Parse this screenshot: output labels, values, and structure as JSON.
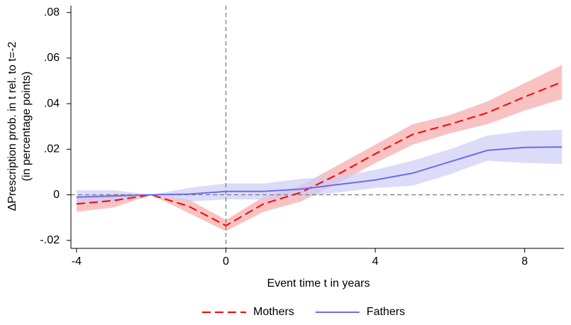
{
  "chart_data": {
    "type": "line",
    "x_label": "Event time t in years",
    "y_label": [
      "ΔPrescription prob. in t rel. to t=-2",
      "(in percentage points)"
    ],
    "x": [
      -4,
      -3,
      -2,
      -1,
      0,
      1,
      2,
      3,
      4,
      5,
      6,
      7,
      8,
      9
    ],
    "series": [
      {
        "name": "Mothers",
        "color": "#ff0000",
        "band_color": "#f7a8a8",
        "dash": true,
        "values": [
          -0.004,
          -0.0025,
          0,
          -0.005,
          -0.0135,
          -0.004,
          0.001,
          0.009,
          0.018,
          0.0265,
          0.031,
          0.036,
          0.043,
          0.0495
        ],
        "lower": [
          -0.0075,
          -0.0055,
          0,
          -0.008,
          -0.016,
          -0.0075,
          -0.003,
          0.005,
          0.014,
          0.022,
          0.027,
          0.031,
          0.037,
          0.042
        ],
        "upper": [
          -0.001,
          0.0005,
          0,
          -0.002,
          -0.011,
          -0.001,
          0.004,
          0.013,
          0.022,
          0.031,
          0.035,
          0.041,
          0.049,
          0.057
        ]
      },
      {
        "name": "Fathers",
        "color": "#6b6bf0",
        "band_color": "#cdcdf7",
        "dash": false,
        "values": [
          -0.001,
          -0.0005,
          0,
          0.0003,
          0.0015,
          0.0015,
          0.0025,
          0.0045,
          0.0065,
          0.0095,
          0.0145,
          0.0195,
          0.0208,
          0.021
        ],
        "lower": [
          -0.004,
          -0.003,
          0,
          -0.003,
          -0.002,
          -0.002,
          -0.001,
          0.001,
          0.003,
          0.004,
          0.009,
          0.015,
          0.014,
          0.0135
        ],
        "upper": [
          0.002,
          0.002,
          0,
          0.003,
          0.005,
          0.005,
          0.007,
          0.008,
          0.011,
          0.015,
          0.02,
          0.026,
          0.028,
          0.0285
        ]
      }
    ],
    "xlim": [
      -4.15,
      9.05
    ],
    "xticks": [
      -4,
      0,
      4,
      8
    ],
    "ylim": [
      -0.0235,
      0.083
    ],
    "yticks": [
      {
        "value": -0.02,
        "label": "-.02"
      },
      {
        "value": 0,
        "label": "0"
      },
      {
        "value": 0.02,
        "label": ".02"
      },
      {
        "value": 0.04,
        "label": ".04"
      },
      {
        "value": 0.06,
        "label": ".06"
      },
      {
        "value": 0.08,
        "label": ".08"
      }
    ],
    "vline": 0,
    "hline": 0,
    "legend": "bottom"
  }
}
